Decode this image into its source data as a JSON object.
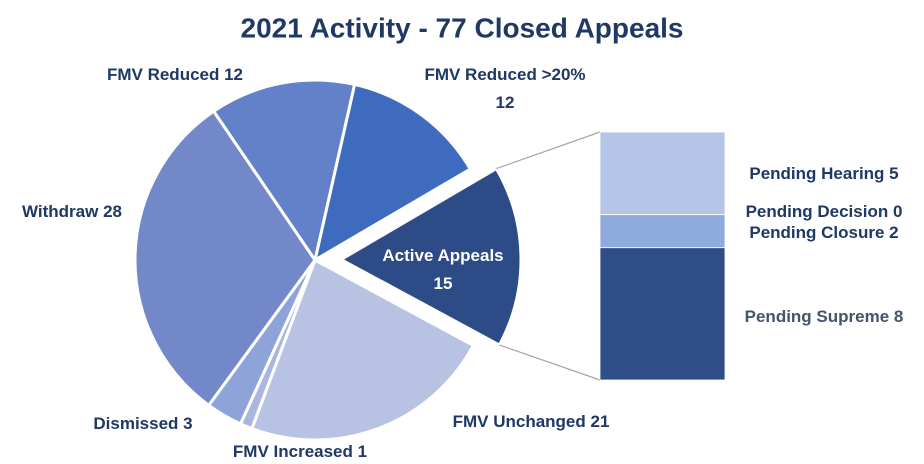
{
  "chart_data": {
    "type": "pie-of-bar",
    "title": "2021 Activity - 77 Closed Appeals",
    "categories": [
      "FMV Reduced >20%",
      "Active Appeals",
      "FMV Unchanged",
      "FMV Increased",
      "Dismissed",
      "Withdraw",
      "FMV Reduced"
    ],
    "values": [
      12,
      15,
      21,
      1,
      3,
      28,
      12
    ],
    "colors": [
      "#3f6bbf",
      "#2d4b86",
      "#b8c3e3",
      "#a9b7df",
      "#8ea3d8",
      "#7388c9",
      "#6381c9"
    ],
    "breakdown": {
      "categories": [
        "Pending Hearing",
        "Pending Decision",
        "Pending Closure",
        "Pending Supreme"
      ],
      "values": [
        5,
        0,
        2,
        8
      ],
      "colors": [
        "#b4c6e7",
        "#9fb6e0",
        "#8faadc",
        "#2f4d87"
      ]
    }
  }
}
